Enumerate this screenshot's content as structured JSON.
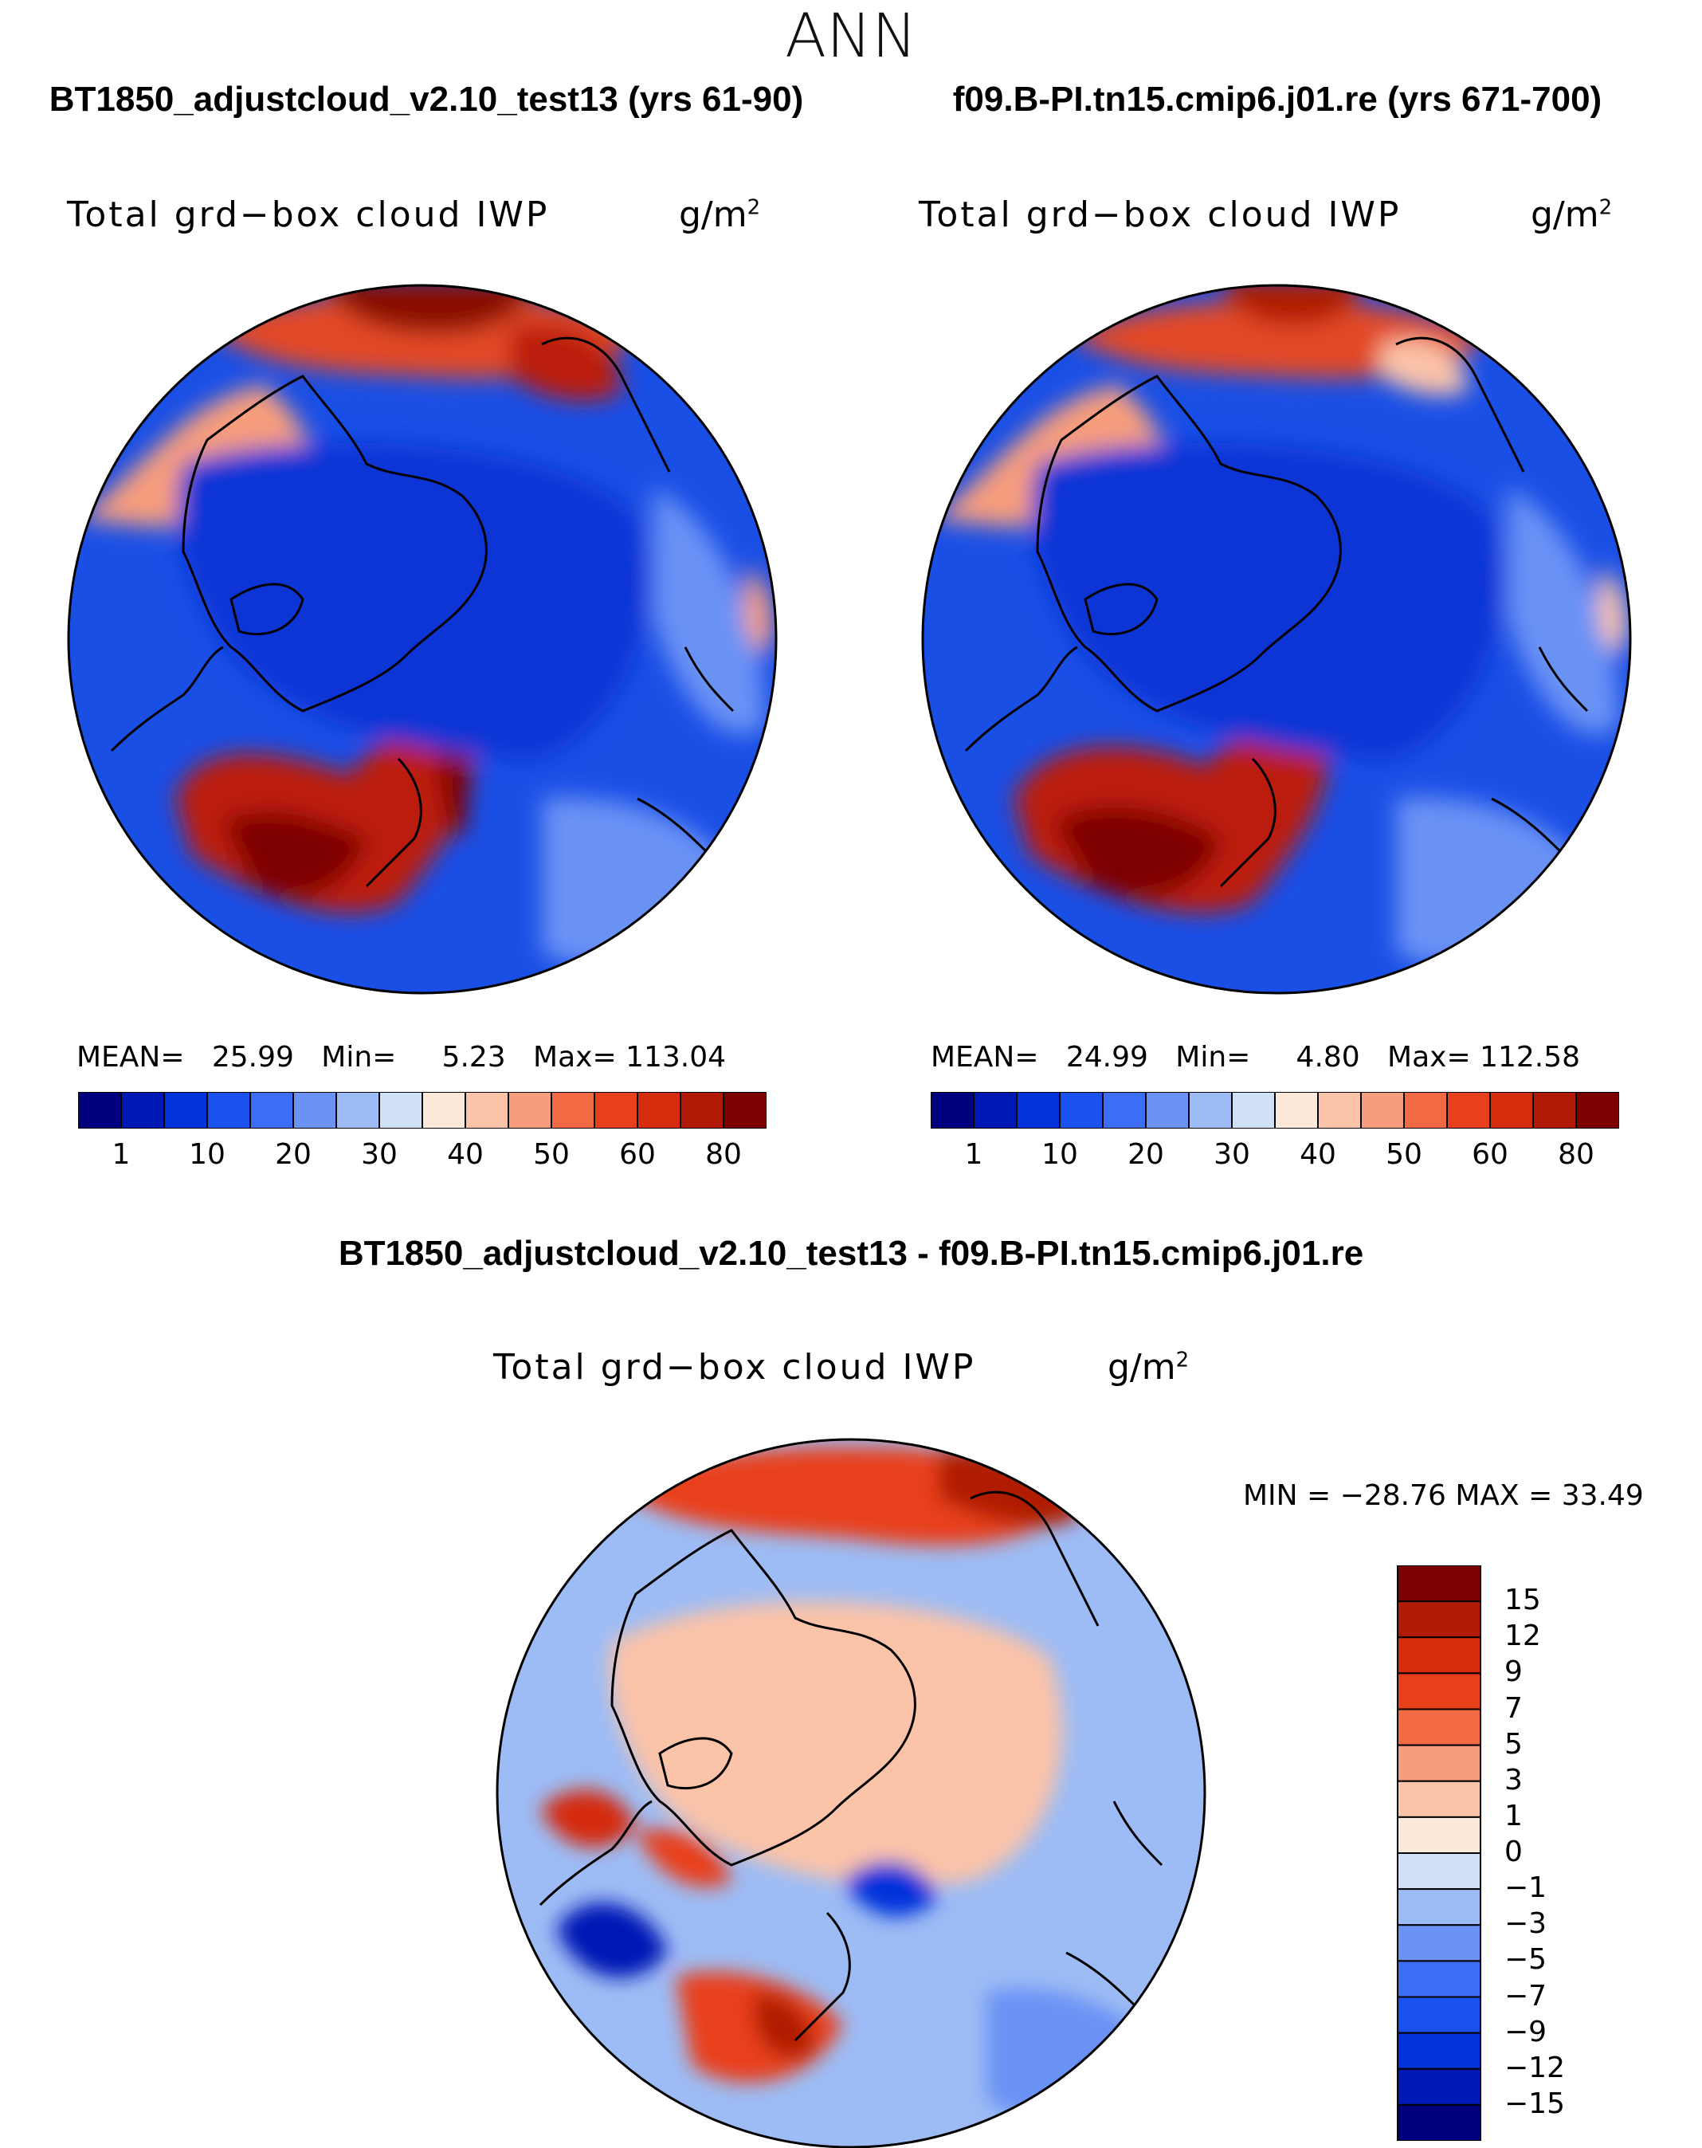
{
  "page": {
    "main_title": "ANN",
    "diff_title": "BT1850_adjustcloud_v2.10_test13 - f09.B-PI.tn15.cmip6.j01.re"
  },
  "chart_data": [
    {
      "type": "heatmap",
      "projection": "north-polar-stereographic",
      "case_title": "BT1850_adjustcloud_v2.10_test13 (yrs 61-90)",
      "variable": "Total grd−box cloud IWP",
      "units": "g/m",
      "units_exp": "2",
      "stats": {
        "mean_label": "MEAN=",
        "mean": "25.99",
        "min_label": "Min=",
        "min": "5.23",
        "max_label": "Max=",
        "max": "113.04"
      },
      "colorbar": {
        "orientation": "horizontal",
        "labels": [
          "1",
          "10",
          "20",
          "30",
          "40",
          "50",
          "60",
          "80"
        ],
        "colors": [
          "#00007f",
          "#0019b5",
          "#0033db",
          "#1a52f0",
          "#3c6ef5",
          "#6b92f5",
          "#9dbcf5",
          "#cfe0f7",
          "#fde9d9",
          "#fbc3a8",
          "#f79d7d",
          "#f26a44",
          "#e8401a",
          "#d42c0c",
          "#b01a06",
          "#7d0000"
        ]
      },
      "regions": {
        "background": "#1a4fe6",
        "pole": "#0b36d6",
        "atlantic_storm_track": "#bb1f08",
        "pacific_north": "#e24a25",
        "north_pacific_core": "#8a0700"
      }
    },
    {
      "type": "heatmap",
      "projection": "north-polar-stereographic",
      "case_title": "f09.B-PI.tn15.cmip6.j01.re (yrs 671-700)",
      "variable": "Total grd−box cloud IWP",
      "units": "g/m",
      "units_exp": "2",
      "stats": {
        "mean_label": "MEAN=",
        "mean": "24.99",
        "min_label": "Min=",
        "min": "4.80",
        "max_label": "Max=",
        "max": "112.58"
      },
      "colorbar": {
        "orientation": "horizontal",
        "labels": [
          "1",
          "10",
          "20",
          "30",
          "40",
          "50",
          "60",
          "80"
        ],
        "colors": [
          "#00007f",
          "#0019b5",
          "#0033db",
          "#1a52f0",
          "#3c6ef5",
          "#6b92f5",
          "#9dbcf5",
          "#cfe0f7",
          "#fde9d9",
          "#fbc3a8",
          "#f79d7d",
          "#f26a44",
          "#e8401a",
          "#d42c0c",
          "#b01a06",
          "#7d0000"
        ]
      },
      "regions": {
        "background": "#1a4fe6",
        "pole": "#0b36d6",
        "atlantic_storm_track": "#bb1f08",
        "pacific_north": "#e24a25",
        "north_pacific_core": "#8a0700"
      }
    },
    {
      "type": "heatmap",
      "projection": "north-polar-stereographic",
      "variable": "Total grd−box cloud IWP",
      "units": "g/m",
      "units_exp": "2",
      "stats": {
        "label": "MIN = −28.76 MAX =   33.49",
        "min": -28.76,
        "max": 33.49
      },
      "colorbar": {
        "orientation": "vertical",
        "labels": [
          "15",
          "12",
          "9",
          "7",
          "5",
          "3",
          "1",
          "0",
          "−1",
          "−3",
          "−5",
          "−7",
          "−9",
          "−12",
          "−15"
        ],
        "colors": [
          "#7d0000",
          "#b01a06",
          "#d42c0c",
          "#e8401a",
          "#f26a44",
          "#f79d7d",
          "#fbc3a8",
          "#fde9d9",
          "#cfe0f7",
          "#9dbcf5",
          "#6b92f5",
          "#3c6ef5",
          "#1a52f0",
          "#0033db",
          "#0019b5",
          "#00007f"
        ]
      }
    }
  ]
}
